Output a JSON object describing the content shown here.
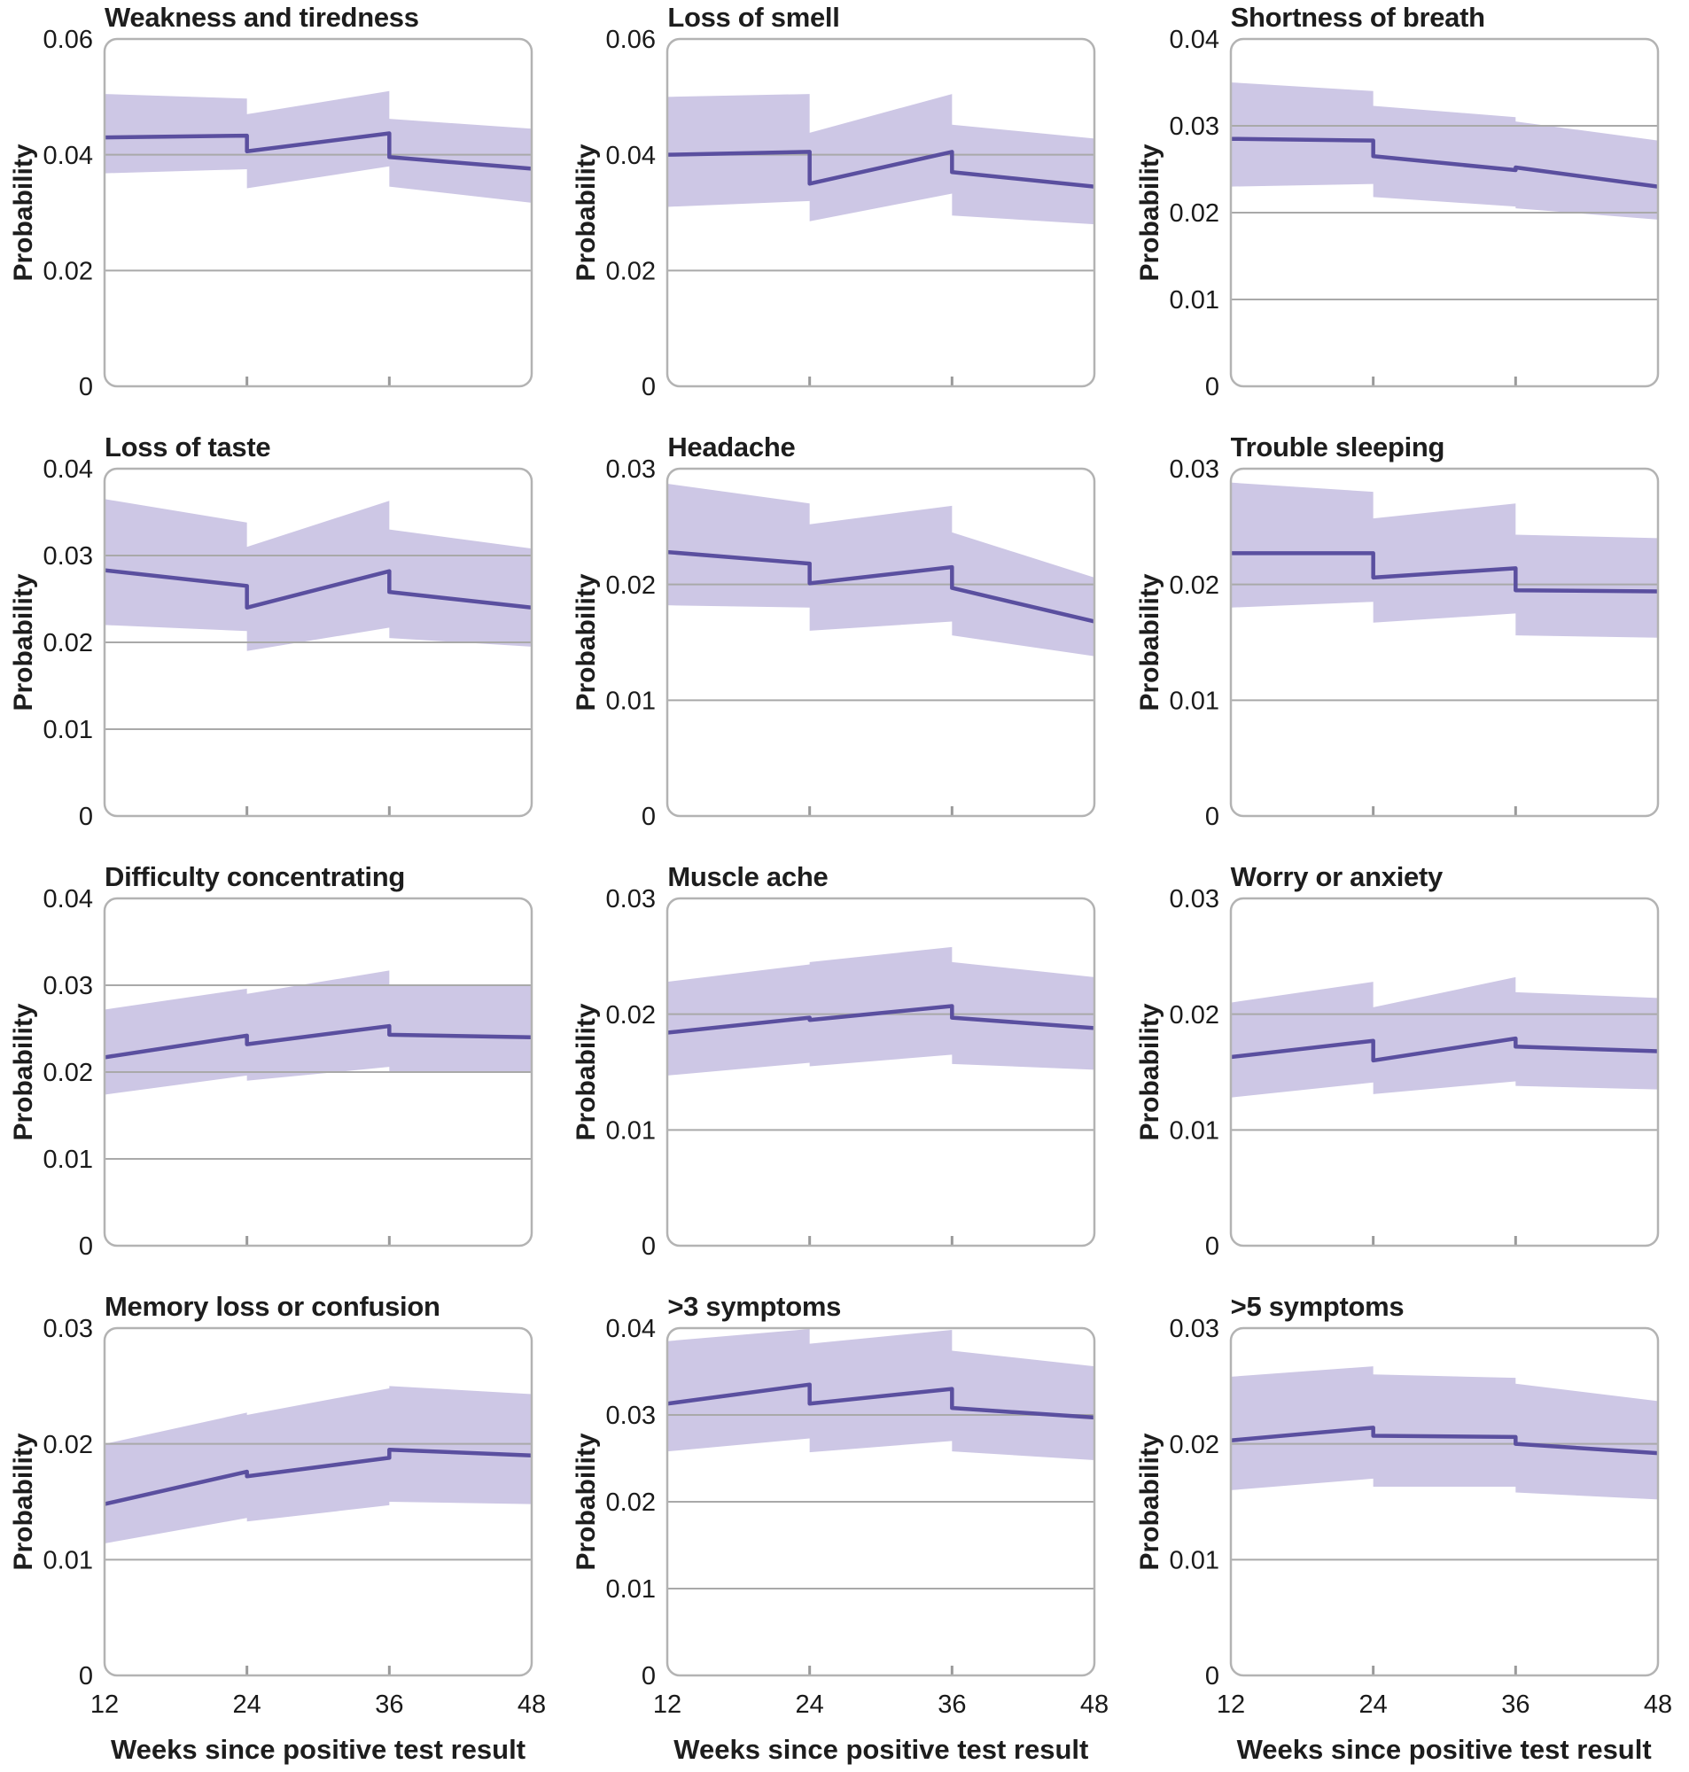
{
  "figure": {
    "y_axis_label": "Probability",
    "x_axis_label": "Weeks since positive test result"
  },
  "colors": {
    "line": "#5a4f9f",
    "band": "#cdc7e5",
    "gridline": "#a9a9a9",
    "border": "#b3b3b3",
    "tick_mark": "#9a9a9a",
    "text": "#1d1d1d",
    "background": "#ffffff"
  },
  "chart_data": {
    "type": "line",
    "description": "12-panel figure of modelled probability of each symptom over weeks since positive test result, purple line with shaded 95% confidence band; discontinuities at weeks 24 and 36",
    "grid_layout": {
      "rows": 4,
      "cols": 3
    },
    "x_label": "Weeks since positive test result",
    "y_label": "Probability",
    "x_range": [
      12,
      48
    ],
    "x_ticks": [
      12,
      24,
      36,
      48
    ],
    "legend": "none",
    "panels": [
      {
        "title": "Weakness and tiredness",
        "y_max": 0.06,
        "y_ticks": [
          0,
          0.02,
          0.04,
          0.06
        ],
        "x": [
          12,
          24,
          24,
          36,
          36,
          48
        ],
        "probability": [
          0.043,
          0.0433,
          0.0406,
          0.0437,
          0.0396,
          0.0376
        ],
        "ci_lower": [
          0.0368,
          0.0375,
          0.0342,
          0.038,
          0.0345,
          0.0317
        ],
        "ci_upper": [
          0.0505,
          0.0497,
          0.047,
          0.051,
          0.0462,
          0.0445
        ]
      },
      {
        "title": "Loss of smell",
        "y_max": 0.06,
        "y_ticks": [
          0,
          0.02,
          0.04,
          0.06
        ],
        "x": [
          12,
          24,
          24,
          36,
          36,
          48
        ],
        "probability": [
          0.04,
          0.0405,
          0.035,
          0.0405,
          0.037,
          0.0345
        ],
        "ci_lower": [
          0.031,
          0.032,
          0.0285,
          0.0333,
          0.0295,
          0.028
        ],
        "ci_upper": [
          0.05,
          0.0505,
          0.0438,
          0.0505,
          0.0452,
          0.0428
        ]
      },
      {
        "title": "Shortness of breath",
        "y_max": 0.04,
        "y_ticks": [
          0,
          0.01,
          0.02,
          0.03,
          0.04
        ],
        "x": [
          12,
          24,
          24,
          36,
          36,
          48
        ],
        "probability": [
          0.0285,
          0.0283,
          0.0265,
          0.0249,
          0.0252,
          0.023
        ],
        "ci_lower": [
          0.023,
          0.0233,
          0.0218,
          0.0207,
          0.0205,
          0.0192
        ],
        "ci_upper": [
          0.035,
          0.034,
          0.0323,
          0.031,
          0.0305,
          0.0283
        ]
      },
      {
        "title": "Loss of taste",
        "y_max": 0.04,
        "y_ticks": [
          0,
          0.01,
          0.02,
          0.03,
          0.04
        ],
        "x": [
          12,
          24,
          24,
          36,
          36,
          48
        ],
        "probability": [
          0.0283,
          0.0265,
          0.024,
          0.0282,
          0.0258,
          0.024
        ],
        "ci_lower": [
          0.022,
          0.0213,
          0.019,
          0.0217,
          0.0205,
          0.0195
        ],
        "ci_upper": [
          0.0365,
          0.0338,
          0.031,
          0.0363,
          0.033,
          0.0308
        ]
      },
      {
        "title": "Headache",
        "y_max": 0.03,
        "y_ticks": [
          0,
          0.01,
          0.02,
          0.03
        ],
        "x": [
          12,
          24,
          24,
          36,
          36,
          48
        ],
        "probability": [
          0.0228,
          0.0218,
          0.0201,
          0.0215,
          0.0197,
          0.0168
        ],
        "ci_lower": [
          0.0182,
          0.018,
          0.016,
          0.0168,
          0.0156,
          0.0138
        ],
        "ci_upper": [
          0.0287,
          0.027,
          0.0252,
          0.0268,
          0.0245,
          0.0206
        ]
      },
      {
        "title": "Trouble sleeping",
        "y_max": 0.03,
        "y_ticks": [
          0,
          0.01,
          0.02,
          0.03
        ],
        "x": [
          12,
          24,
          24,
          36,
          36,
          48
        ],
        "probability": [
          0.0227,
          0.0227,
          0.0206,
          0.0214,
          0.0195,
          0.0194
        ],
        "ci_lower": [
          0.018,
          0.0185,
          0.0167,
          0.0175,
          0.0156,
          0.0154
        ],
        "ci_upper": [
          0.0288,
          0.028,
          0.0257,
          0.027,
          0.0243,
          0.024
        ]
      },
      {
        "title": "Difficulty concentrating",
        "y_max": 0.04,
        "y_ticks": [
          0,
          0.01,
          0.02,
          0.03,
          0.04
        ],
        "x": [
          12,
          24,
          24,
          36,
          36,
          48
        ],
        "probability": [
          0.0217,
          0.0242,
          0.0232,
          0.0253,
          0.0243,
          0.024
        ],
        "ci_lower": [
          0.0174,
          0.0196,
          0.019,
          0.0206,
          0.02,
          0.0199
        ],
        "ci_upper": [
          0.0272,
          0.0296,
          0.029,
          0.0317,
          0.03,
          0.0299
        ]
      },
      {
        "title": "Muscle ache",
        "y_max": 0.03,
        "y_ticks": [
          0,
          0.01,
          0.02,
          0.03
        ],
        "x": [
          12,
          24,
          24,
          36,
          36,
          48
        ],
        "probability": [
          0.0184,
          0.0197,
          0.0195,
          0.0207,
          0.0197,
          0.0188
        ],
        "ci_lower": [
          0.0147,
          0.0158,
          0.0155,
          0.0165,
          0.0157,
          0.0152
        ],
        "ci_upper": [
          0.0228,
          0.0243,
          0.0245,
          0.0258,
          0.0245,
          0.0232
        ]
      },
      {
        "title": "Worry or anxiety",
        "y_max": 0.03,
        "y_ticks": [
          0,
          0.01,
          0.02,
          0.03
        ],
        "x": [
          12,
          24,
          24,
          36,
          36,
          48
        ],
        "probability": [
          0.0163,
          0.0177,
          0.016,
          0.0179,
          0.0172,
          0.0168
        ],
        "ci_lower": [
          0.0128,
          0.0141,
          0.0131,
          0.0142,
          0.0138,
          0.0135
        ],
        "ci_upper": [
          0.021,
          0.0228,
          0.0206,
          0.0232,
          0.0219,
          0.0214
        ]
      },
      {
        "title": "Memory loss or confusion",
        "y_max": 0.03,
        "y_ticks": [
          0,
          0.01,
          0.02,
          0.03
        ],
        "x": [
          12,
          24,
          24,
          36,
          36,
          48
        ],
        "probability": [
          0.0148,
          0.0176,
          0.0172,
          0.0188,
          0.0195,
          0.019
        ],
        "ci_lower": [
          0.0114,
          0.0136,
          0.0133,
          0.0147,
          0.015,
          0.0148
        ],
        "ci_upper": [
          0.02,
          0.0227,
          0.0225,
          0.0248,
          0.025,
          0.0243
        ]
      },
      {
        "title": ">3 symptoms",
        "y_max": 0.04,
        "y_ticks": [
          0,
          0.01,
          0.02,
          0.03,
          0.04
        ],
        "x": [
          12,
          24,
          24,
          36,
          36,
          48
        ],
        "probability": [
          0.0313,
          0.0335,
          0.0313,
          0.033,
          0.0308,
          0.0297
        ],
        "ci_lower": [
          0.0258,
          0.0273,
          0.0257,
          0.027,
          0.0258,
          0.0248
        ],
        "ci_upper": [
          0.0385,
          0.0399,
          0.0382,
          0.0398,
          0.0374,
          0.0356
        ]
      },
      {
        "title": ">5 symptoms",
        "y_max": 0.03,
        "y_ticks": [
          0,
          0.01,
          0.02,
          0.03
        ],
        "x": [
          12,
          24,
          24,
          36,
          36,
          48
        ],
        "probability": [
          0.0203,
          0.0214,
          0.0207,
          0.0206,
          0.02,
          0.0192
        ],
        "ci_lower": [
          0.016,
          0.017,
          0.0163,
          0.0163,
          0.0158,
          0.0152
        ],
        "ci_upper": [
          0.0258,
          0.0267,
          0.026,
          0.0257,
          0.0252,
          0.0237
        ]
      }
    ]
  }
}
